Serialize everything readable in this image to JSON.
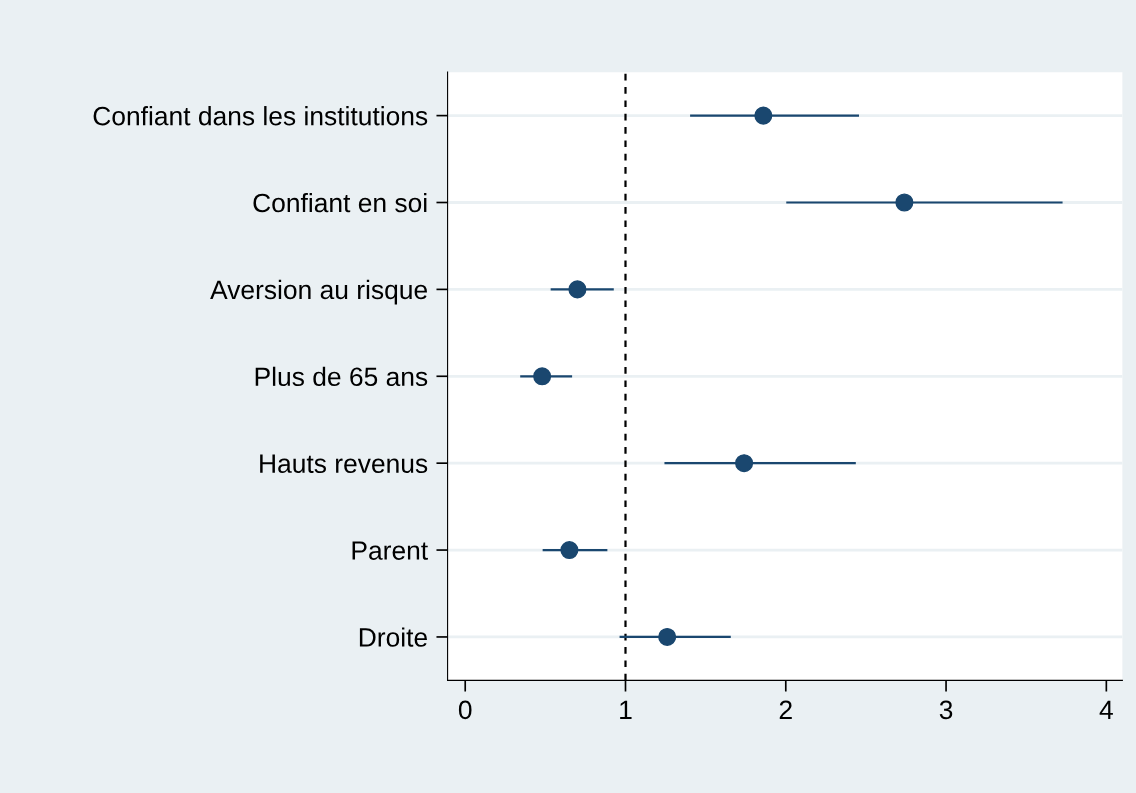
{
  "chart_data": {
    "type": "scatter",
    "orientation": "horizontal",
    "categories": [
      "Confiant dans les institutions",
      "Confiant en soi",
      "Aversion au risque",
      "Plus de 65 ans",
      "Hauts revenus",
      "Parent",
      "Droite"
    ],
    "values": [
      1.86,
      2.74,
      0.7,
      0.48,
      1.74,
      0.65,
      1.26
    ],
    "errors": [
      [
        1.41,
        2.45
      ],
      [
        2.01,
        3.72
      ],
      [
        0.54,
        0.92
      ],
      [
        0.35,
        0.66
      ],
      [
        1.25,
        2.43
      ],
      [
        0.49,
        0.88
      ],
      [
        0.97,
        1.65
      ]
    ],
    "color": "#1a476f",
    "marker": "circle",
    "xlim": [
      -0.11,
      4.1
    ],
    "xticks": [
      0,
      1,
      2,
      3,
      4
    ],
    "grid": "y",
    "ref_lines": [
      {
        "axis": "x",
        "value": 1,
        "color": "#000000",
        "line_style": "dashed"
      }
    ]
  }
}
